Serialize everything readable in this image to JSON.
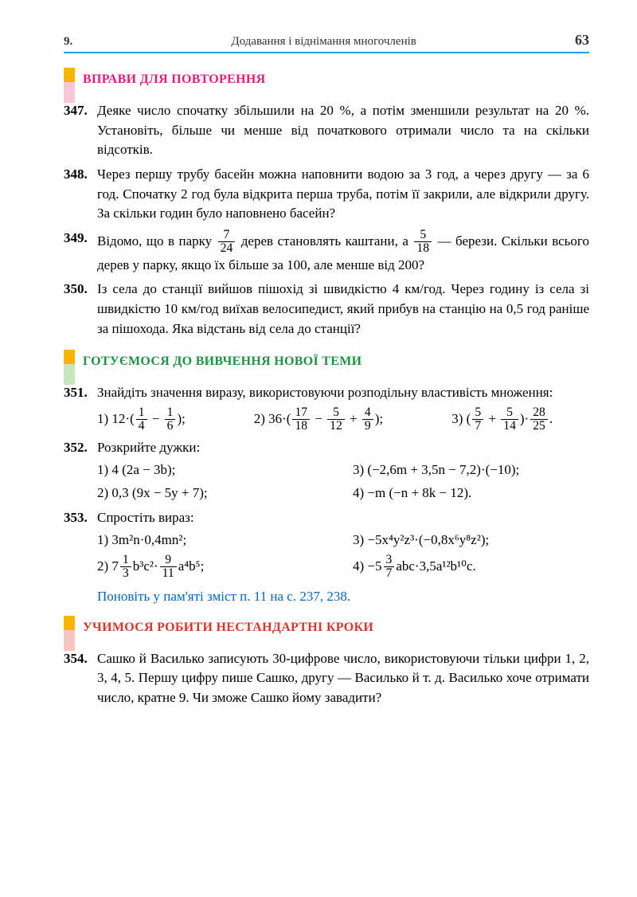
{
  "header": {
    "chapter": "9.",
    "title": "Додавання і віднімання многочленів",
    "page": "63"
  },
  "sections": {
    "review": {
      "title": "ВПРАВИ ДЛЯ ПОВТОРЕННЯ"
    },
    "newtopic": {
      "title": "ГОТУЄМОСЯ ДО ВИВЧЕННЯ НОВОЇ ТЕМИ"
    },
    "nonstandard": {
      "title": "УЧИМОСЯ РОБИТИ НЕСТАНДАРТНІ КРОКИ"
    }
  },
  "problems": {
    "p347": {
      "num": "347.",
      "text": "Деяке число спочатку збільшили на 20 %, а потім зменшили результат на 20 %. Установіть, більше чи менше від початкового отримали число та на скільки відсотків."
    },
    "p348": {
      "num": "348.",
      "text": "Через першу трубу басейн можна наповнити водою за 3 год, а через другу — за 6 год. Спочатку 2 год була відкрита перша труба, потім її закрили, але відкрили другу. За скільки годин було наповнено басейн?"
    },
    "p349": {
      "num": "349.",
      "pre": "Відомо, що в парку ",
      "f1n": "7",
      "f1d": "24",
      "mid": " дерев становлять каштани, а ",
      "f2n": "5",
      "f2d": "18",
      "post": " — бе­рези. Скільки всього дерев у парку, якщо їх більше за 100, але менше від 200?"
    },
    "p350": {
      "num": "350.",
      "text": "Із села до станції вийшов пішохід зі швидкістю 4 км/год. Через годину із села зі швидкістю 10 км/год виїхав велосипедист, який прибув на станцію на 0,5 год раніше за пішохода. Яка відстань від села до станції?"
    },
    "p351": {
      "num": "351.",
      "text": "Знайдіть значення виразу, використовуючи розподільну влас­тивість множення:",
      "i1": {
        "a": "1)  12·(",
        "f1n": "1",
        "f1d": "4",
        "m": " − ",
        "f2n": "1",
        "f2d": "6",
        "z": ");"
      },
      "i2": {
        "a": "2)  36·(",
        "f1n": "17",
        "f1d": "18",
        "m1": " − ",
        "f2n": "5",
        "f2d": "12",
        "m2": " + ",
        "f3n": "4",
        "f3d": "9",
        "z": ");"
      },
      "i3": {
        "a": "3)  (",
        "f1n": "5",
        "f1d": "7",
        "m": " + ",
        "f2n": "5",
        "f2d": "14",
        "b": ")·",
        "f3n": "28",
        "f3d": "25",
        "z": "."
      }
    },
    "p352": {
      "num": "352.",
      "text": "Розкрийте дужки:",
      "i1": "1)  4 (2a − 3b);",
      "i2": "3)  (−2,6m + 3,5n − 7,2)·(−10);",
      "i3": "2)  0,3 (9x − 5y + 7);",
      "i4": "4)  −m (−n + 8k − 12)."
    },
    "p353": {
      "num": "353.",
      "text": "Спростіть вираз:",
      "i1": "1)  3m²n·0,4mn²;",
      "i2": "3)  −5x⁴y²z³·(−0,8x⁶y⁸z²);",
      "i3": {
        "a": "2)  7",
        "f1n": "1",
        "f1d": "3",
        "b": "b³c²·",
        "f2n": "9",
        "f2d": "11",
        "c": "a⁴b⁵;"
      },
      "i4": {
        "a": "4)  −5",
        "f1n": "3",
        "f1d": "7",
        "b": "abc·3,5a¹²b¹⁰c."
      }
    },
    "p354": {
      "num": "354.",
      "text": "Сашко й Василько записують 30-цифрове число, використо­вуючи тільки цифри 1, 2, 3, 4, 5. Першу цифру пише Сашко, другу — Василько й т. д. Василько хоче отримати число, крат­не 9. Чи зможе Сашко йому завадити?"
    }
  },
  "note": "Поновіть у пам'яті зміст п. 11 на с. 237, 238.",
  "colors": {
    "rule": "#00aee6",
    "pink": "#e21e7b",
    "green": "#1d9340",
    "red": "#d9372b",
    "note": "#0066c0"
  }
}
